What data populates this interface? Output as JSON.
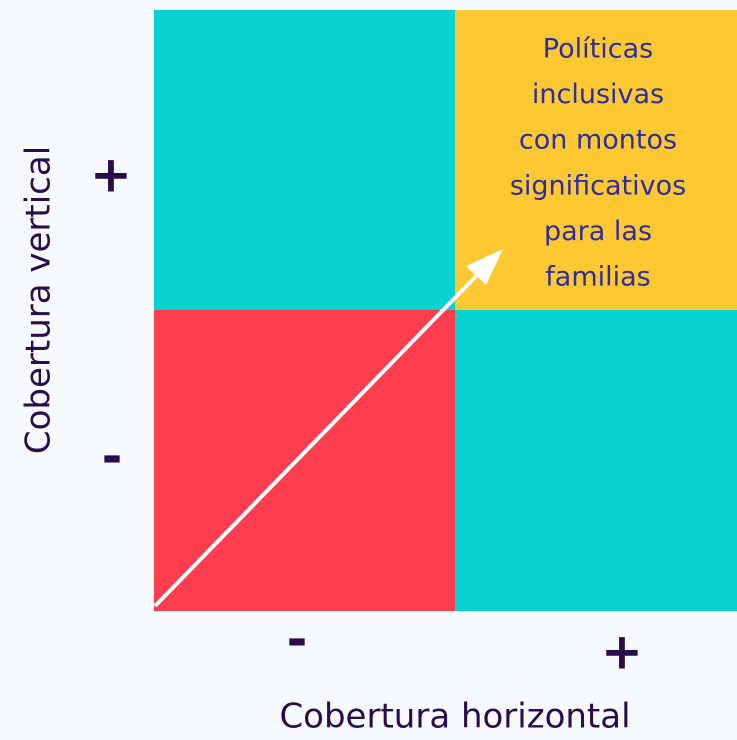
{
  "quadrant": {
    "lines": [
      "Políticas",
      "inclusivas",
      "con montos",
      "significativos",
      "para las",
      "familias"
    ]
  },
  "y_axis": {
    "label": "Cobertura vertical",
    "high": "+",
    "low": "-"
  },
  "x_axis": {
    "label": "Cobertura horizontal",
    "low": "-",
    "high": "+"
  }
}
